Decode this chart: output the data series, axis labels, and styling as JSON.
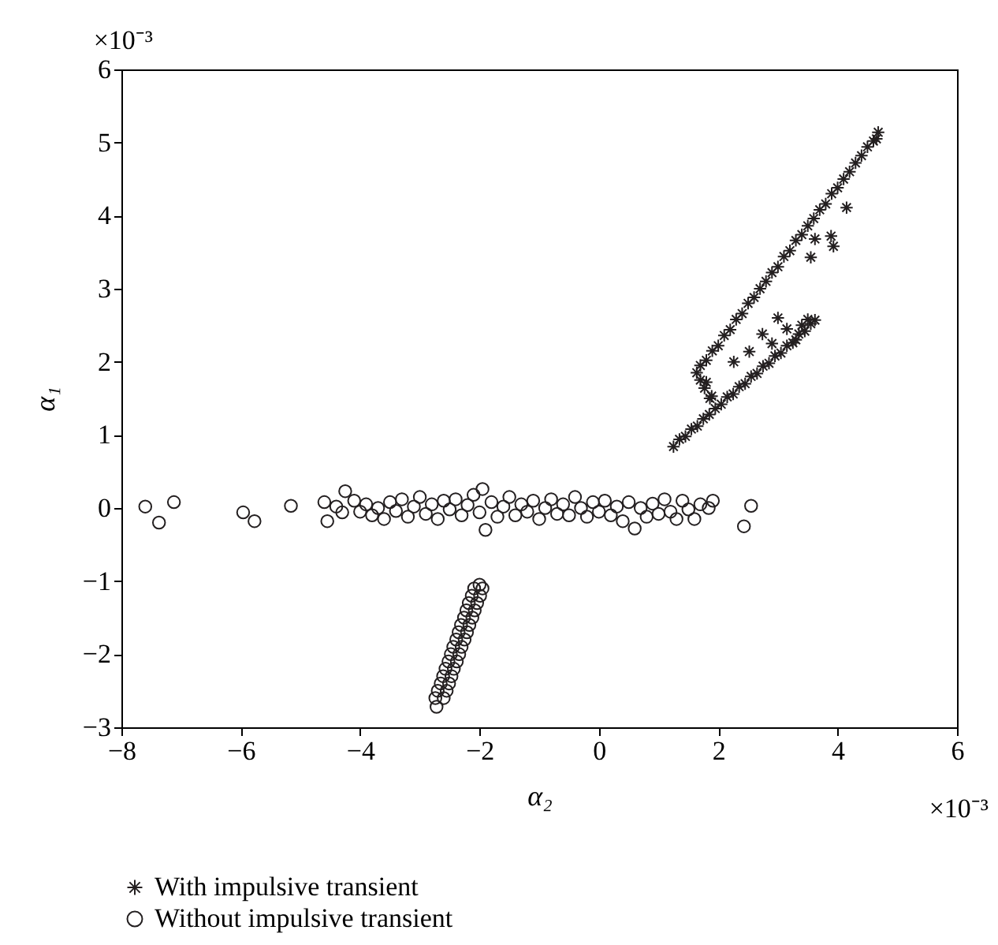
{
  "chart_data": {
    "type": "scatter",
    "xlabel": "α₂",
    "ylabel": "α₁",
    "xlim": [
      -8,
      6
    ],
    "ylim": [
      -3,
      6
    ],
    "xticks": [
      -8,
      -6,
      -4,
      -2,
      0,
      2,
      4,
      6
    ],
    "yticks": [
      -3,
      -2,
      -1,
      0,
      1,
      2,
      3,
      4,
      5,
      6
    ],
    "grid": false,
    "legend": "bottom",
    "annotations": [
      "×10⁻³",
      "×10⁻³"
    ],
    "series": [
      {
        "name": "With impulsive transient",
        "color": "#231f20",
        "marker": "cross",
        "x": [
          1.64,
          1.7,
          1.8,
          1.9,
          2.0,
          2.1,
          2.2,
          2.3,
          2.4,
          2.5,
          2.6,
          2.7,
          2.8,
          2.9,
          3.0,
          3.1,
          3.2,
          3.3,
          3.4,
          3.5,
          3.6,
          3.7,
          3.8,
          3.9,
          4.0,
          4.1,
          4.2,
          4.3,
          4.4,
          4.5,
          4.6,
          4.68,
          4.65,
          1.77,
          1.86,
          1.7,
          1.25,
          1.35,
          1.45,
          1.55,
          1.65,
          1.75,
          1.85,
          1.95,
          2.05,
          2.15,
          2.25,
          2.35,
          2.45,
          2.55,
          2.65,
          2.75,
          2.85,
          2.95,
          3.05,
          3.15,
          3.25,
          3.35,
          3.45,
          3.55,
          3.62,
          3.5,
          3.4,
          3.3,
          4.15,
          3.89,
          3.93,
          3.55,
          3.62,
          3.0,
          2.74,
          2.52,
          2.26,
          1.8,
          1.89,
          2.9,
          3.15
        ],
        "values": [
          1.85,
          1.95,
          2.02,
          2.15,
          2.22,
          2.36,
          2.44,
          2.58,
          2.66,
          2.8,
          2.88,
          3.0,
          3.1,
          3.22,
          3.3,
          3.44,
          3.52,
          3.66,
          3.74,
          3.86,
          3.96,
          4.08,
          4.16,
          4.3,
          4.38,
          4.5,
          4.6,
          4.72,
          4.82,
          4.94,
          5.02,
          5.14,
          5.05,
          1.64,
          1.5,
          1.75,
          0.84,
          0.94,
          0.98,
          1.08,
          1.12,
          1.22,
          1.28,
          1.36,
          1.42,
          1.52,
          1.56,
          1.66,
          1.7,
          1.8,
          1.84,
          1.94,
          1.98,
          2.08,
          2.12,
          2.22,
          2.26,
          2.38,
          2.42,
          2.52,
          2.57,
          2.58,
          2.5,
          2.3,
          4.11,
          3.72,
          3.58,
          3.43,
          3.68,
          2.6,
          2.38,
          2.14,
          2.0,
          1.72,
          1.53,
          2.25,
          2.45
        ]
      },
      {
        "name": "Without impulsive transient",
        "color": "#231f20",
        "marker": "circle",
        "x": [
          -7.6,
          -7.37,
          -7.12,
          -5.96,
          -5.77,
          -5.16,
          1.91,
          2.43,
          2.55,
          -4.6,
          -4.55,
          -4.4,
          -4.3,
          -4.25,
          -4.1,
          -4.0,
          -3.9,
          -3.8,
          -3.7,
          -3.6,
          -3.5,
          -3.4,
          -3.3,
          -3.2,
          -3.1,
          -3.0,
          -2.9,
          -2.8,
          -2.7,
          -2.6,
          -2.5,
          -2.4,
          -2.3,
          -2.2,
          -2.1,
          -2.0,
          -1.95,
          -1.9,
          -1.8,
          -1.7,
          -1.6,
          -1.5,
          -1.4,
          -1.3,
          -1.2,
          -1.1,
          -1.0,
          -0.9,
          -0.8,
          -0.7,
          -0.6,
          -0.5,
          -0.4,
          -0.3,
          -0.2,
          -0.1,
          0.0,
          0.1,
          0.2,
          0.3,
          0.4,
          0.5,
          0.6,
          0.7,
          0.8,
          0.9,
          1.0,
          1.1,
          1.2,
          1.3,
          1.4,
          1.5,
          1.6,
          1.7,
          1.84,
          -2.72,
          -2.6,
          -2.74,
          -2.55,
          -2.7,
          -2.51,
          -2.65,
          -2.47,
          -2.61,
          -2.43,
          -2.57,
          -2.38,
          -2.52,
          -2.34,
          -2.48,
          -2.3,
          -2.44,
          -2.25,
          -2.39,
          -2.21,
          -2.35,
          -2.17,
          -2.31,
          -2.12,
          -2.26,
          -2.08,
          -2.22,
          -2.04,
          -2.18,
          -1.99,
          -2.13,
          -1.95,
          -2.09,
          -2.0
        ],
        "values": [
          0.02,
          -0.2,
          0.08,
          -0.06,
          -0.18,
          0.03,
          0.1,
          -0.25,
          0.03,
          0.08,
          -0.18,
          0.02,
          -0.06,
          0.23,
          0.1,
          -0.05,
          0.05,
          -0.1,
          0.0,
          -0.15,
          0.08,
          -0.04,
          0.12,
          -0.12,
          0.02,
          0.15,
          -0.08,
          0.05,
          -0.15,
          0.1,
          -0.02,
          0.12,
          -0.1,
          0.04,
          0.18,
          -0.06,
          0.26,
          -0.3,
          0.08,
          -0.12,
          0.02,
          0.15,
          -0.1,
          0.05,
          -0.05,
          0.1,
          -0.15,
          0.0,
          0.12,
          -0.08,
          0.05,
          -0.1,
          0.15,
          0.0,
          -0.12,
          0.08,
          -0.05,
          0.1,
          -0.1,
          0.02,
          -0.18,
          0.08,
          -0.28,
          0.0,
          -0.12,
          0.06,
          -0.08,
          0.12,
          -0.05,
          -0.15,
          0.1,
          -0.02,
          -0.15,
          0.05,
          0.0,
          -2.72,
          -2.6,
          -2.6,
          -2.5,
          -2.5,
          -2.4,
          -2.4,
          -2.3,
          -2.3,
          -2.2,
          -2.2,
          -2.1,
          -2.1,
          -2.0,
          -2.0,
          -1.9,
          -1.9,
          -1.8,
          -1.8,
          -1.7,
          -1.7,
          -1.6,
          -1.6,
          -1.5,
          -1.5,
          -1.4,
          -1.4,
          -1.3,
          -1.3,
          -1.2,
          -1.2,
          -1.1,
          -1.1,
          -1.05
        ]
      }
    ]
  }
}
